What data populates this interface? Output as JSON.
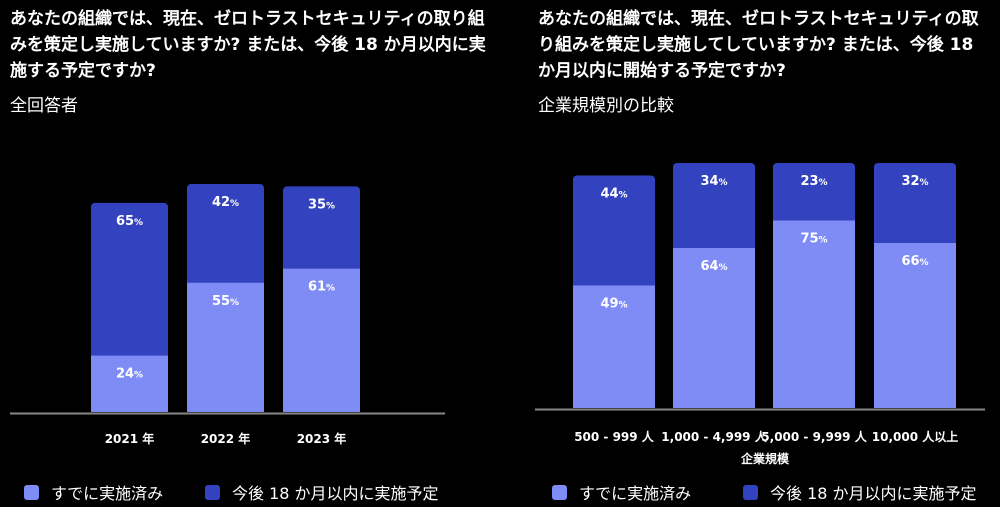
{
  "colors": {
    "done": "#7f8cf5",
    "planned": "#3343bf",
    "background": "#000000",
    "axis": "#888888"
  },
  "chart_data": [
    {
      "type": "bar",
      "stacked": true,
      "title": "あなたの組織では、現在、ゼロトラストセキュリティの取り組みを策定し実施していますか? または、今後 18 か月以内に実施する予定ですか?",
      "subtitle": "全回答者",
      "xlabel": "",
      "categories": [
        "2021 年",
        "2022 年",
        "2023 年"
      ],
      "series": [
        {
          "name": "すでに実施済み",
          "values": [
            24,
            55,
            61
          ]
        },
        {
          "name": "今後 18 か月以内に実施予定",
          "values": [
            65,
            42,
            35
          ]
        }
      ],
      "value_suffix": "%",
      "legend": "bottom"
    },
    {
      "type": "bar",
      "stacked": true,
      "title": "あなたの組織では、現在、ゼロトラストセキュリティの取り組みを策定し実施してしていますか? または、今後 18 か月以内に開始する予定ですか?",
      "subtitle": "企業規模別の比較",
      "xlabel": "企業規模",
      "categories": [
        "500 - 999 人",
        "1,000 - 4,999 人",
        "5,000 - 9,999 人",
        "10,000 人以上"
      ],
      "series": [
        {
          "name": "すでに実施済み",
          "values": [
            49,
            64,
            75,
            66
          ]
        },
        {
          "name": "今後 18 か月以内に実施予定",
          "values": [
            44,
            34,
            23,
            32
          ]
        }
      ],
      "value_suffix": "%",
      "legend": "bottom"
    }
  ]
}
